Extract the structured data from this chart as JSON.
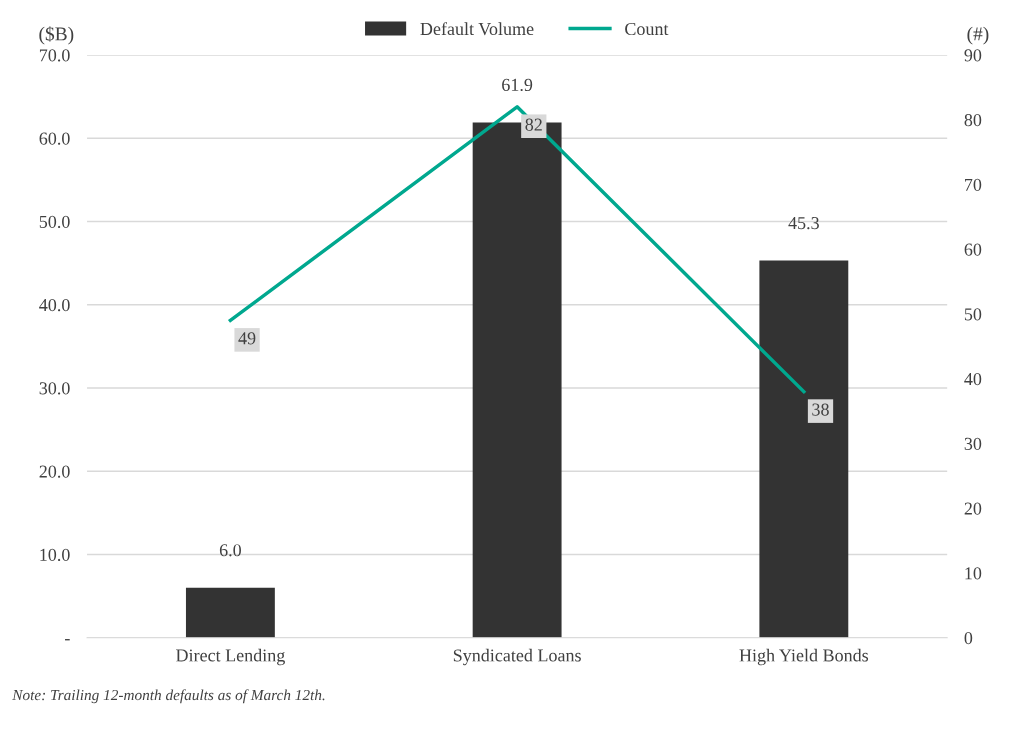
{
  "chart_data": {
    "type": "bar",
    "categories": [
      "Direct Lending",
      "Syndicated Loans",
      "High Yield Bonds"
    ],
    "series": [
      {
        "name": "Default Volume",
        "color": "#333333",
        "values": [
          6.0,
          61.9,
          45.3
        ],
        "value_labels": [
          "6.0",
          "61.9",
          "45.3"
        ]
      },
      {
        "name": "Count",
        "type": "line",
        "axis": "y2",
        "color": "#00a88f",
        "values": [
          49,
          82,
          38
        ],
        "value_labels": [
          "49",
          "82",
          "38"
        ]
      }
    ],
    "ylabel": "($B)",
    "y2label": "(#)",
    "ylim": [
      0,
      70
    ],
    "yticks": [
      {
        "value": 0,
        "label": "-"
      },
      {
        "value": 10,
        "label": "10.0"
      },
      {
        "value": 20,
        "label": "20.0"
      },
      {
        "value": 30,
        "label": "30.0"
      },
      {
        "value": 40,
        "label": "40.0"
      },
      {
        "value": 50,
        "label": "50.0"
      },
      {
        "value": 60,
        "label": "60.0"
      },
      {
        "value": 70,
        "label": "70.0"
      }
    ],
    "y2lim": [
      0,
      90
    ],
    "y2ticks": [
      0,
      10,
      20,
      30,
      40,
      50,
      60,
      70,
      80,
      90
    ],
    "grid": "y",
    "legend": "top",
    "marker": "none",
    "annotations": [
      "Note: Trailing 12-month defaults as of March 12th."
    ]
  }
}
